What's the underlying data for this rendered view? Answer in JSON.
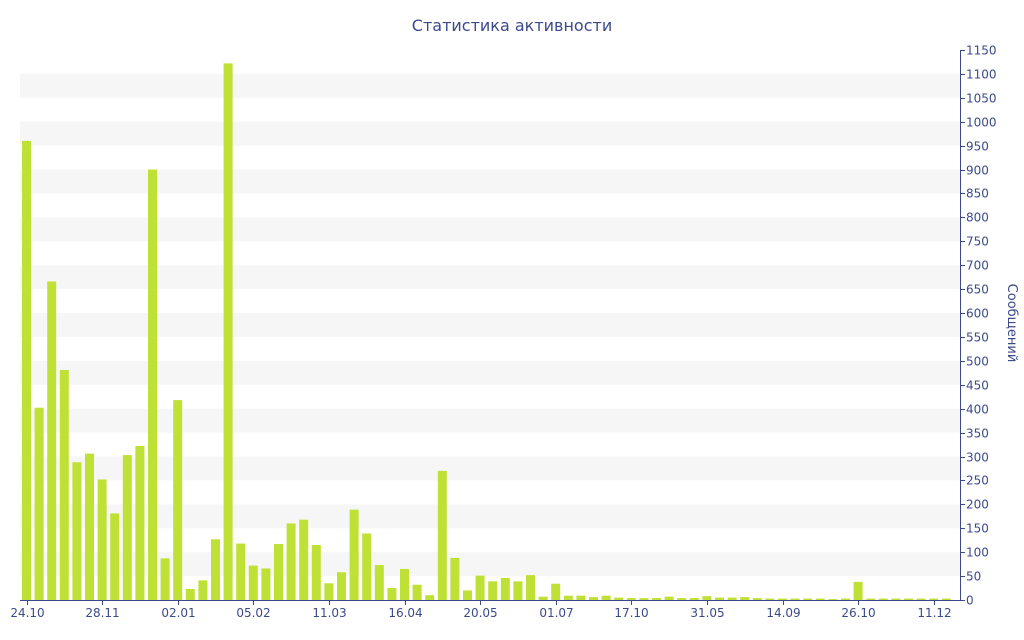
{
  "chart_data": {
    "type": "bar",
    "title": "Статистика активности",
    "ylabel": "Сообщений",
    "xlabel": "",
    "ylim": [
      0,
      1150
    ],
    "y_tick_step": 50,
    "y_axis_side": "right",
    "grid": "alternating-bands",
    "legend": "none",
    "x_tick_labels": [
      {
        "index": 0,
        "label": "24.10"
      },
      {
        "index": 6,
        "label": "28.11"
      },
      {
        "index": 12,
        "label": "02.01"
      },
      {
        "index": 18,
        "label": "05.02"
      },
      {
        "index": 24,
        "label": "11.03"
      },
      {
        "index": 30,
        "label": "16.04"
      },
      {
        "index": 36,
        "label": "20.05"
      },
      {
        "index": 42,
        "label": "01.07"
      },
      {
        "index": 48,
        "label": "17.10"
      },
      {
        "index": 54,
        "label": "31.05"
      },
      {
        "index": 60,
        "label": "14.09"
      },
      {
        "index": 66,
        "label": "26.10"
      },
      {
        "index": 72,
        "label": "11.12"
      }
    ],
    "values": [
      960,
      402,
      666,
      481,
      288,
      306,
      252,
      181,
      303,
      322,
      900,
      87,
      418,
      23,
      41,
      127,
      1122,
      118,
      72,
      66,
      117,
      160,
      168,
      115,
      35,
      58,
      189,
      139,
      73,
      25,
      65,
      32,
      10,
      270,
      88,
      20,
      51,
      39,
      46,
      39,
      52,
      7,
      34,
      9,
      9,
      6,
      9,
      5,
      4,
      4,
      4,
      7,
      4,
      4,
      8,
      5,
      5,
      6,
      4,
      3,
      3,
      3,
      3,
      3,
      2,
      3,
      38,
      3,
      3,
      3,
      3,
      3,
      3,
      3
    ],
    "colors": {
      "bar": "#bfe035",
      "band": "#f6f6f6",
      "axis": "#3c4a8a",
      "text": "#3c4a8a"
    }
  }
}
